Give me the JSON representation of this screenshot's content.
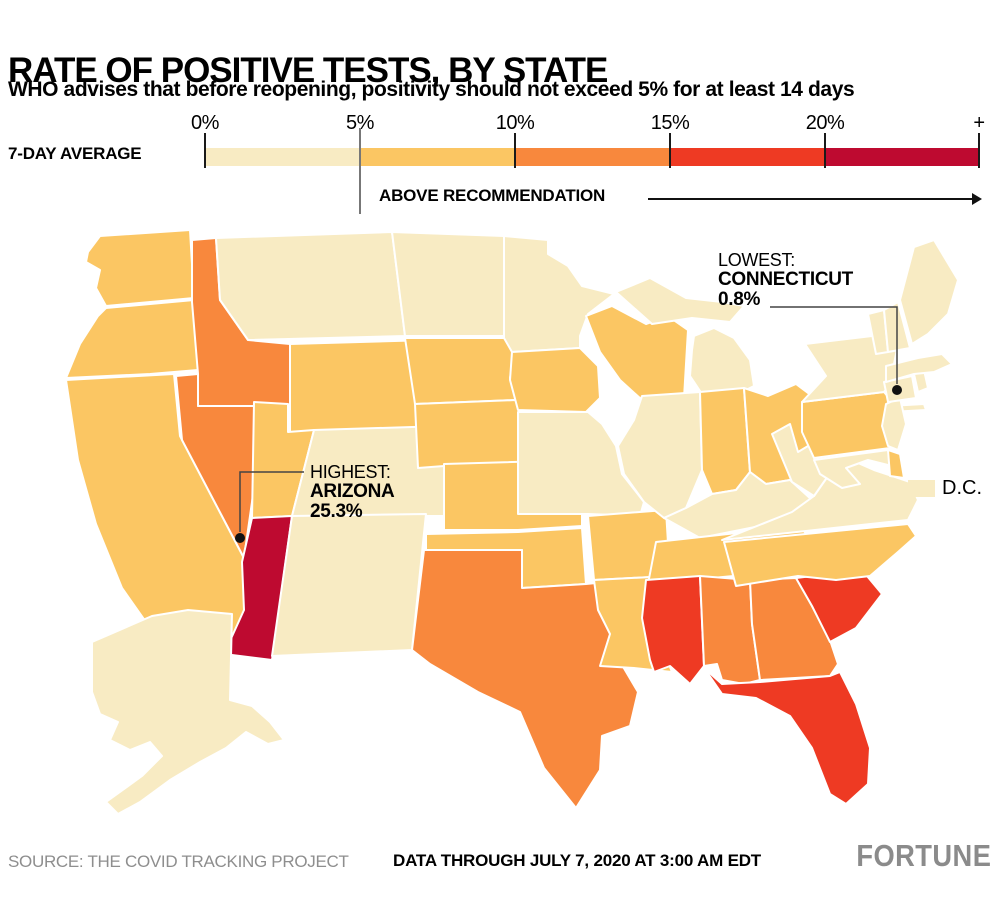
{
  "title": "RATE OF POSITIVE TESTS, BY STATE",
  "subtitle": "WHO advises that before reopening, positivity should not exceed 5% for at least 14 days",
  "legend": {
    "label": "7-DAY AVERAGE",
    "ticks": [
      "0%",
      "5%",
      "10%",
      "15%",
      "20%",
      "+"
    ],
    "threshold_note": "ABOVE RECOMMENDATION",
    "dc_label": "D.C.",
    "bins": [
      {
        "range": "0-5%",
        "color": "#F8EBC3"
      },
      {
        "range": "5-10%",
        "color": "#FBC663"
      },
      {
        "range": "10-15%",
        "color": "#F8883D"
      },
      {
        "range": "15-20%",
        "color": "#EE3A23"
      },
      {
        "range": "20%+",
        "color": "#BE0A30"
      }
    ]
  },
  "annotations": {
    "highest": {
      "prefix": "HIGHEST:",
      "state": "ARIZONA",
      "value": "25.3%"
    },
    "lowest": {
      "prefix": "LOWEST:",
      "state": "CONNECTICUT",
      "value": "0.8%"
    }
  },
  "footer": {
    "source": "SOURCE: THE COVID TRACKING PROJECT",
    "data_through": "DATA THROUGH JULY 7, 2020 AT 3:00 AM EDT",
    "brand": "FORTUNE"
  },
  "chart_data": {
    "type": "heatmap",
    "subtype": "choropleth-us-states",
    "title": "RATE OF POSITIVE TESTS, BY STATE",
    "unit": "percent positive tests, 7-day average",
    "legend_bins": [
      "0-5%",
      "5-10%",
      "10-15%",
      "15-20%",
      "20%+"
    ],
    "threshold": "5% WHO reopening recommendation",
    "dc": "0-5%",
    "highlights": {
      "highest": {
        "state": "Arizona",
        "value": 25.3
      },
      "lowest": {
        "state": "Connecticut",
        "value": 0.8
      }
    },
    "states": {
      "WA": "5-10%",
      "OR": "5-10%",
      "CA": "5-10%",
      "NV": "10-15%",
      "ID": "10-15%",
      "MT": "0-5%",
      "WY": "5-10%",
      "UT": "5-10%",
      "CO": "0-5%",
      "AZ": "20%+",
      "NM": "0-5%",
      "AK": "0-5%",
      "ND": "0-5%",
      "SD": "5-10%",
      "NE": "5-10%",
      "KS": "5-10%",
      "OK": "5-10%",
      "TX": "10-15%",
      "MN": "0-5%",
      "IA": "5-10%",
      "MO": "0-5%",
      "AR": "5-10%",
      "LA": "5-10%",
      "WI": "5-10%",
      "IL": "0-5%",
      "MI": "0-5%",
      "IN": "5-10%",
      "OH": "5-10%",
      "KY": "0-5%",
      "TN": "5-10%",
      "MS": "15-20%",
      "AL": "10-15%",
      "GA": "10-15%",
      "FL": "15-20%",
      "SC": "15-20%",
      "NC": "5-10%",
      "VA": "0-5%",
      "WV": "0-5%",
      "PA": "5-10%",
      "NY": "0-5%",
      "NJ": "0-5%",
      "MD": "0-5%",
      "DE": "5-10%",
      "CT": "0-5%",
      "RI": "0-5%",
      "MA": "0-5%",
      "VT": "0-5%",
      "NH": "0-5%",
      "ME": "0-5%"
    }
  }
}
